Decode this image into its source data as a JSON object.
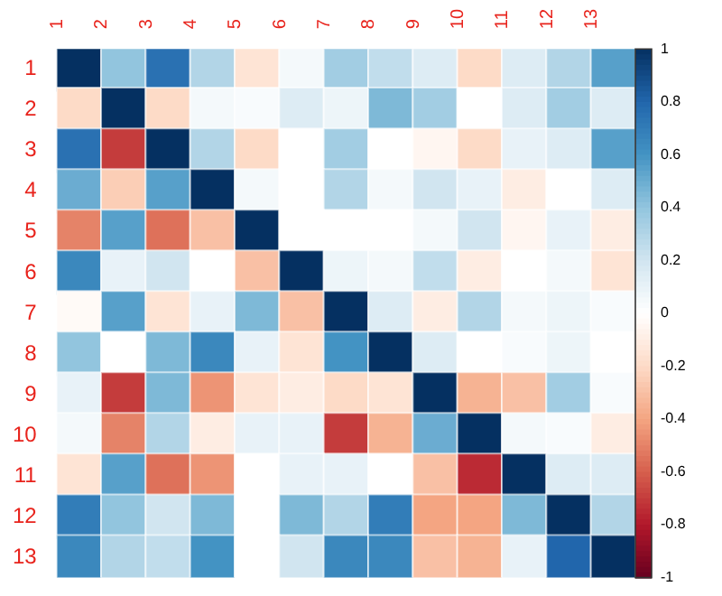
{
  "chart_data": {
    "type": "heatmap",
    "categories": [
      "1",
      "2",
      "3",
      "4",
      "5",
      "6",
      "7",
      "8",
      "9",
      "10",
      "11",
      "12",
      "13"
    ],
    "y_categories": [
      "1",
      "2",
      "3",
      "4",
      "5",
      "6",
      "7",
      "8",
      "9",
      "10",
      "11",
      "12",
      "13"
    ],
    "cells": [
      [
        1,
        0.4,
        0.75,
        0.3,
        -0.15,
        0.05,
        0.35,
        0.25,
        0.15,
        -0.2,
        0.15,
        0.3,
        0.55
      ],
      [
        -0.2,
        1,
        -0.2,
        0.05,
        0.03,
        0.15,
        0.08,
        0.45,
        0.35,
        0,
        0.15,
        0.35,
        0.15
      ],
      [
        0.75,
        -0.7,
        1,
        0.3,
        -0.2,
        0,
        0.35,
        0,
        -0.05,
        -0.2,
        0.1,
        0.15,
        0.55
      ],
      [
        0.5,
        -0.25,
        0.55,
        1,
        0.05,
        0,
        0.3,
        0.05,
        0.2,
        0.1,
        -0.1,
        0,
        0.15
      ],
      [
        -0.5,
        0.55,
        -0.55,
        -0.3,
        1,
        0,
        0,
        0,
        0.05,
        0.2,
        -0.05,
        0.1,
        -0.1
      ],
      [
        0.65,
        0.1,
        0.2,
        0,
        -0.3,
        1,
        0.08,
        0.05,
        0.25,
        -0.1,
        0,
        0.05,
        -0.15
      ],
      [
        -0.03,
        0.55,
        -0.15,
        0.1,
        0.45,
        -0.3,
        1,
        0.15,
        -0.1,
        0.3,
        0.05,
        0.08,
        0.03
      ],
      [
        0.4,
        0,
        0.45,
        0.65,
        0.1,
        -0.15,
        0.6,
        1,
        0.15,
        0,
        0.03,
        0.08,
        0
      ],
      [
        0.1,
        -0.7,
        0.45,
        -0.45,
        -0.15,
        -0.1,
        -0.2,
        -0.15,
        1,
        -0.35,
        -0.3,
        0.35,
        0.03
      ],
      [
        0.05,
        -0.5,
        0.3,
        -0.1,
        0.1,
        0.1,
        -0.7,
        -0.35,
        0.5,
        1,
        0.05,
        0.03,
        -0.1
      ],
      [
        -0.15,
        0.55,
        -0.55,
        -0.45,
        0,
        0.1,
        0.1,
        0,
        -0.3,
        -0.75,
        1,
        0.15,
        0.15
      ],
      [
        0.7,
        0.4,
        0.2,
        0.45,
        0,
        0.45,
        0.3,
        0.7,
        -0.4,
        -0.4,
        0.45,
        1,
        0.3
      ],
      [
        0.65,
        0.3,
        0.25,
        0.6,
        0,
        0.2,
        0.65,
        0.65,
        -0.3,
        -0.35,
        0.1,
        0.8,
        1
      ]
    ],
    "clim": [
      -1,
      1
    ],
    "cticks": [
      -1,
      -0.8,
      -0.6,
      -0.4,
      -0.2,
      0,
      0.2,
      0.4,
      0.6,
      0.8,
      1
    ]
  }
}
